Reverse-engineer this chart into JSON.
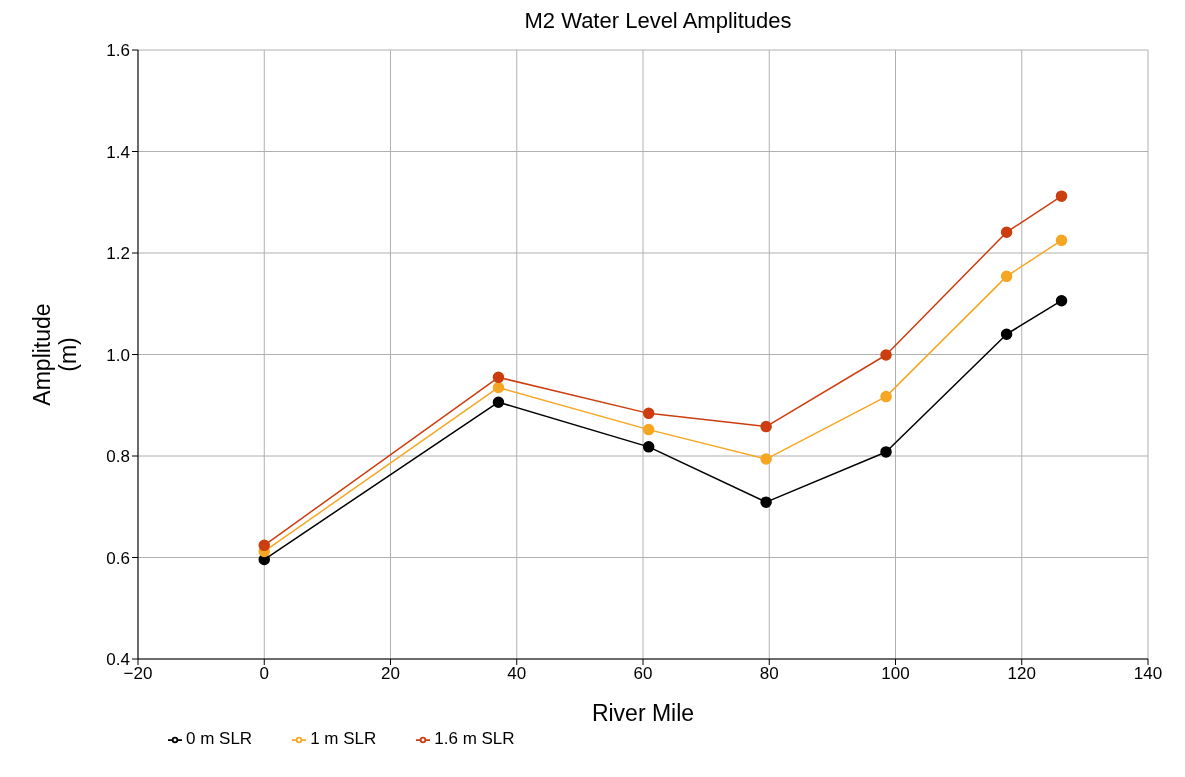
{
  "chart_data": {
    "type": "line",
    "title": "M2 Water Level Amplitudes",
    "xlabel": "River Mile",
    "ylabel": "Amplitude (m)",
    "x": [
      0,
      37.1,
      60.9,
      79.5,
      98.5,
      117.6,
      126.3
    ],
    "series": [
      {
        "name": "0 m SLR",
        "color": "#000000",
        "values": [
          0.596,
          0.906,
          0.818,
          0.709,
          0.808,
          1.04,
          1.106
        ]
      },
      {
        "name": "1 m SLR",
        "color": "#f5a623",
        "values": [
          0.612,
          0.935,
          0.852,
          0.794,
          0.917,
          1.154,
          1.225
        ]
      },
      {
        "name": "1.6 m SLR",
        "color": "#cc3d0f",
        "values": [
          0.624,
          0.955,
          0.884,
          0.858,
          0.999,
          1.241,
          1.312
        ]
      }
    ],
    "xlim": [
      -20,
      140
    ],
    "xticks": [
      {
        "value": -20,
        "label": "−20"
      },
      0,
      20,
      40,
      60,
      80,
      100,
      120,
      140
    ],
    "ylim": [
      0.4,
      1.6
    ],
    "yticks": [
      {
        "value": 0.4,
        "label": "0.4"
      },
      {
        "value": 0.6,
        "label": "0.6"
      },
      {
        "value": 0.8,
        "label": "0.8"
      },
      {
        "value": 1.0,
        "label": "1.0"
      },
      {
        "value": 1.2,
        "label": "1.2"
      },
      {
        "value": 1.4,
        "label": "1.4"
      },
      {
        "value": 1.6,
        "label": "1.6"
      }
    ],
    "grid": true,
    "legend": "bottom left",
    "marker": "circle",
    "line_style": "solid"
  }
}
